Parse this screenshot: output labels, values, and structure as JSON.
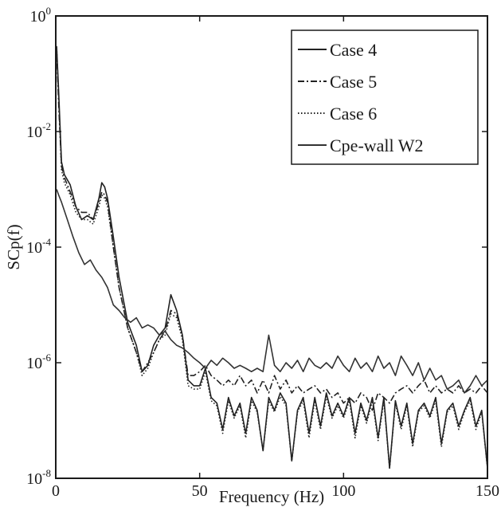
{
  "chart_data": {
    "type": "line",
    "title": "",
    "xlabel": "Frequency (Hz)",
    "ylabel": "SCp(f)",
    "xlim": [
      0,
      150
    ],
    "ylim": [
      1e-08,
      1
    ],
    "y_scale": "log",
    "grid": false,
    "legend_position": "top-right",
    "x_ticks": [
      {
        "value": 0,
        "label": "0"
      },
      {
        "value": 50,
        "label": "50"
      },
      {
        "value": 100,
        "label": "100"
      },
      {
        "value": 150,
        "label": "150"
      }
    ],
    "y_ticks": [
      {
        "value": 1,
        "base": "10",
        "exp": "0"
      },
      {
        "value": 0.01,
        "base": "10",
        "exp": "-2"
      },
      {
        "value": 0.0001,
        "base": "10",
        "exp": "-4"
      },
      {
        "value": 1e-06,
        "base": "10",
        "exp": "-6"
      },
      {
        "value": 1e-08,
        "base": "10",
        "exp": "-8"
      }
    ],
    "series": [
      {
        "name": "Case 4",
        "style": "solid",
        "color": "#222222",
        "x": [
          0.3,
          1,
          2,
          3,
          5,
          7,
          9,
          11,
          13,
          15,
          16,
          17,
          18,
          20,
          22,
          25,
          28,
          30,
          32,
          34,
          36,
          38,
          40,
          42,
          44,
          46,
          48,
          50,
          52,
          54,
          56,
          58,
          60,
          62,
          64,
          66,
          68,
          70,
          72,
          74,
          76,
          78,
          80,
          82,
          84,
          86,
          88,
          90,
          92,
          94,
          96,
          98,
          100,
          102,
          104,
          106,
          108,
          110,
          112,
          114,
          116,
          118,
          120,
          122,
          124,
          126,
          128,
          130,
          132,
          134,
          136,
          138,
          140,
          142,
          144,
          146,
          148,
          150
        ],
        "y": [
          0.3,
          0.05,
          0.003,
          0.0018,
          0.0012,
          0.0005,
          0.0003,
          0.00035,
          0.0003,
          0.0007,
          0.0013,
          0.0011,
          0.0007,
          0.00015,
          3e-05,
          5e-06,
          2e-06,
          7e-07,
          9e-07,
          2e-06,
          3e-06,
          4e-06,
          1.5e-05,
          8e-06,
          3e-06,
          5e-07,
          4e-07,
          4e-07,
          8e-07,
          2.5e-07,
          2e-07,
          7e-08,
          2.5e-07,
          1.2e-07,
          2e-07,
          6e-08,
          2.5e-07,
          1.5e-07,
          3e-08,
          2.5e-07,
          1.5e-07,
          3e-07,
          2e-07,
          2e-08,
          1.5e-07,
          2.5e-07,
          6e-08,
          2.5e-07,
          8e-08,
          3e-07,
          1.2e-07,
          2e-07,
          1.2e-07,
          2.5e-07,
          6e-08,
          2e-07,
          1e-07,
          2.5e-07,
          5e-08,
          2.5e-07,
          1.5e-08,
          2.2e-07,
          8e-08,
          2e-07,
          4e-08,
          1.5e-07,
          2e-07,
          1.2e-07,
          2.5e-07,
          4e-08,
          1.5e-07,
          2e-07,
          8e-08,
          1.5e-07,
          2.5e-07,
          8e-08,
          1.5e-07,
          1.5e-08
        ]
      },
      {
        "name": "Case 5",
        "style": "dashdot",
        "color": "#222222",
        "x": [
          0.3,
          1,
          2,
          3,
          5,
          7,
          9,
          11,
          13,
          15,
          16,
          17,
          18,
          20,
          22,
          25,
          28,
          30,
          32,
          34,
          36,
          38,
          40,
          42,
          44,
          46,
          48,
          50,
          52,
          54,
          56,
          58,
          60,
          62,
          64,
          66,
          68,
          70,
          72,
          74,
          76,
          78,
          80,
          82,
          84,
          86,
          88,
          90,
          92,
          94,
          96,
          98,
          100,
          102,
          104,
          106,
          108,
          110,
          112,
          114,
          116,
          118,
          120,
          122,
          124,
          126,
          128,
          130,
          132,
          134,
          136,
          138,
          140,
          142,
          144,
          146,
          148,
          150
        ],
        "y": [
          0.25,
          0.03,
          0.0025,
          0.0016,
          0.0009,
          0.0005,
          0.0004,
          0.0004,
          0.0003,
          0.0006,
          0.0009,
          0.0008,
          0.0006,
          0.0001,
          2e-05,
          4e-06,
          1.5e-06,
          7e-07,
          1e-06,
          1.5e-06,
          2.5e-06,
          3.5e-06,
          8e-06,
          7e-06,
          3e-06,
          6e-07,
          6e-07,
          7e-07,
          9e-07,
          6e-07,
          5e-07,
          4e-07,
          5e-07,
          4e-07,
          6e-07,
          4e-07,
          5e-07,
          3e-07,
          5e-07,
          3e-07,
          6e-07,
          3.5e-07,
          5e-07,
          3e-07,
          4e-07,
          3e-07,
          3.5e-07,
          4e-07,
          3e-07,
          3.5e-07,
          2.5e-07,
          3e-07,
          2e-07,
          2.5e-07,
          2e-07,
          3e-07,
          2.5e-07,
          1.5e-07,
          3e-07,
          2.5e-07,
          2e-07,
          3e-07,
          3.5e-07,
          4e-07,
          3e-07,
          4e-07,
          5e-07,
          3e-07,
          4e-07,
          3e-07,
          3.5e-07,
          3e-07,
          4e-07,
          3e-07,
          3.5e-07,
          3e-07,
          4e-07,
          3e-07
        ]
      },
      {
        "name": "Case 6",
        "style": "dotted",
        "color": "#222222",
        "x": [
          0.3,
          1,
          2,
          3,
          5,
          7,
          9,
          11,
          13,
          15,
          16,
          17,
          18,
          20,
          22,
          25,
          28,
          30,
          32,
          34,
          36,
          38,
          40,
          42,
          44,
          46,
          48,
          50,
          52,
          54,
          56,
          58,
          60,
          62,
          64,
          66,
          68,
          70,
          72,
          74,
          76,
          78,
          80,
          82,
          84,
          86,
          88,
          90,
          92,
          94,
          96,
          98,
          100,
          102,
          104,
          106,
          108,
          110,
          112,
          114,
          116,
          118,
          120,
          122,
          124,
          126,
          128,
          130,
          132,
          134,
          136,
          138,
          140,
          142,
          144,
          146,
          148,
          150
        ],
        "y": [
          0.28,
          0.04,
          0.0022,
          0.0013,
          0.0008,
          0.0004,
          0.0003,
          0.0003,
          0.00025,
          0.0005,
          0.0008,
          0.0007,
          0.0005,
          0.0001,
          2e-05,
          4e-06,
          1.5e-06,
          6e-07,
          8e-07,
          1.5e-06,
          2.5e-06,
          3e-06,
          7e-06,
          6e-06,
          2.5e-06,
          4e-07,
          3.5e-07,
          3.5e-07,
          7e-07,
          2.2e-07,
          1.8e-07,
          6e-08,
          2.2e-07,
          1.1e-07,
          1.8e-07,
          5e-08,
          2.2e-07,
          1.4e-07,
          3e-08,
          2.2e-07,
          1.4e-07,
          2.6e-07,
          1.8e-07,
          2e-08,
          1.4e-07,
          2.2e-07,
          5e-08,
          2.2e-07,
          7e-08,
          2.6e-07,
          1.1e-07,
          1.8e-07,
          1.1e-07,
          2.2e-07,
          5e-08,
          1.8e-07,
          9e-08,
          2.2e-07,
          4.5e-08,
          2.2e-07,
          1.5e-08,
          2e-07,
          7e-08,
          1.8e-07,
          3.5e-08,
          1.4e-07,
          1.8e-07,
          1.1e-07,
          2.2e-07,
          3.5e-08,
          1.4e-07,
          1.8e-07,
          7e-08,
          1.4e-07,
          2.2e-07,
          7e-08,
          1.4e-07,
          1.5e-08
        ]
      },
      {
        "name": "Cpe-wall W2",
        "style": "solid",
        "color": "#333333",
        "x": [
          0.3,
          1,
          2,
          4,
          6,
          8,
          10,
          12,
          14,
          16,
          18,
          20,
          22,
          24,
          26,
          28,
          30,
          32,
          34,
          36,
          38,
          40,
          42,
          44,
          46,
          48,
          50,
          52,
          54,
          56,
          58,
          60,
          62,
          64,
          66,
          68,
          70,
          72,
          74,
          76,
          78,
          80,
          82,
          84,
          86,
          88,
          90,
          92,
          94,
          96,
          98,
          100,
          102,
          104,
          106,
          108,
          110,
          112,
          114,
          116,
          118,
          120,
          122,
          124,
          126,
          128,
          130,
          132,
          134,
          136,
          138,
          140,
          142,
          144,
          146,
          148,
          150
        ],
        "y": [
          0.001,
          0.0008,
          0.0006,
          0.0003,
          0.00015,
          8e-05,
          5e-05,
          6e-05,
          4e-05,
          3e-05,
          2e-05,
          1e-05,
          8e-06,
          6e-06,
          5e-06,
          6e-06,
          4e-06,
          4.5e-06,
          4e-06,
          3e-06,
          3.5e-06,
          2.5e-06,
          2e-06,
          1.8e-06,
          1.5e-06,
          1.2e-06,
          1e-06,
          8e-07,
          1.1e-06,
          9e-07,
          1.2e-06,
          1e-06,
          8e-07,
          9e-07,
          8e-07,
          7e-07,
          8e-07,
          7e-07,
          3e-06,
          9e-07,
          7e-07,
          1e-06,
          8e-07,
          1.1e-06,
          7e-07,
          1.2e-06,
          9e-07,
          8e-07,
          1e-06,
          8e-07,
          1.3e-06,
          9e-07,
          7e-07,
          1.2e-06,
          8e-07,
          1e-06,
          7e-07,
          1.3e-06,
          8e-07,
          1e-06,
          6e-07,
          1.3e-06,
          9e-07,
          6e-07,
          1e-06,
          5e-07,
          8e-07,
          5e-07,
          6e-07,
          3.5e-07,
          4e-07,
          5e-07,
          3e-07,
          4e-07,
          6e-07,
          4e-07,
          5e-07
        ]
      }
    ]
  }
}
